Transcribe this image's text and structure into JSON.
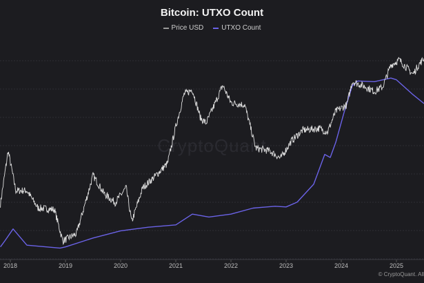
{
  "chart_data": {
    "type": "line",
    "title": "Bitcoin: UTXO Count",
    "watermark": "CryptoQuant",
    "credit": "© CryptoQuant. All",
    "xlabel": "",
    "ylabel": "",
    "x_ticks": [
      "2018",
      "2019",
      "2020",
      "2021",
      "2022",
      "2023",
      "2024",
      "2025"
    ],
    "xlim": [
      2017.82,
      2025.5
    ],
    "grid": "horizontal",
    "legend_position": "top-center",
    "price_scale": "log",
    "price_ylim": [
      2500,
      169000
    ],
    "utxo_ylim_millions": [
      46,
      215
    ],
    "series": [
      {
        "name": "Price USD",
        "color": "#e0e0e0",
        "x": [
          2017.82,
          2017.96,
          2018.1,
          2018.3,
          2018.5,
          2018.8,
          2018.95,
          2019.2,
          2019.5,
          2019.7,
          2019.9,
          2020.1,
          2020.2,
          2020.4,
          2020.6,
          2020.85,
          2021.0,
          2021.15,
          2021.3,
          2021.45,
          2021.55,
          2021.7,
          2021.85,
          2022.0,
          2022.25,
          2022.45,
          2022.7,
          2022.9,
          2023.1,
          2023.3,
          2023.6,
          2023.75,
          2023.9,
          2024.1,
          2024.2,
          2024.45,
          2024.6,
          2024.75,
          2024.9,
          2025.05,
          2025.3,
          2025.4,
          2025.5
        ],
        "values": [
          7000,
          19000,
          9000,
          9000,
          6500,
          6300,
          3500,
          4000,
          12000,
          8500,
          7200,
          9500,
          5000,
          9500,
          11500,
          15000,
          30000,
          55000,
          60000,
          35000,
          32000,
          45000,
          65000,
          47000,
          45000,
          20000,
          19000,
          16500,
          23000,
          28000,
          29000,
          27000,
          40000,
          45000,
          70000,
          63000,
          58000,
          63000,
          95000,
          105000,
          80000,
          95000,
          108000
        ]
      },
      {
        "name": "UTXO Count",
        "unit": "millions",
        "color": "#6b63e8",
        "x": [
          2017.82,
          2017.9,
          2018.05,
          2018.3,
          2018.9,
          2019.0,
          2019.5,
          2020.0,
          2020.5,
          2021.0,
          2021.3,
          2021.6,
          2022.0,
          2022.4,
          2022.8,
          2023.0,
          2023.2,
          2023.5,
          2023.7,
          2023.8,
          2023.9,
          2024.05,
          2024.2,
          2024.3,
          2024.6,
          2024.9,
          2025.0,
          2025.3,
          2025.5
        ],
        "values": [
          55,
          59.5,
          68.5,
          56.3,
          54.1,
          55,
          61.7,
          67.1,
          69.8,
          71.6,
          79.7,
          77.5,
          79.7,
          84.2,
          85.6,
          85.1,
          88.7,
          102.2,
          124.7,
          122.4,
          133.7,
          156.2,
          176.4,
          180,
          179.5,
          182.2,
          180.9,
          169.7,
          163
        ]
      }
    ]
  }
}
